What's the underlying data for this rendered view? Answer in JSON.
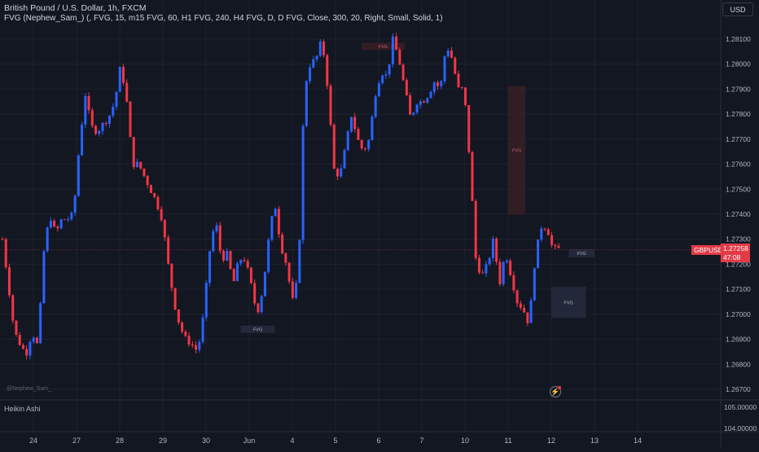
{
  "header": {
    "title": "British Pound / U.S. Dollar, 1h, FXCM",
    "indicator": "FVG (Nephew_Sam_) (, FVG, 15, m15 FVG, 60, H1 FVG, 240, H4 FVG, D, D FVG, Close, 300, 20, Right, Small, Solid, 1)"
  },
  "currency_button": "USD",
  "watermark": "@Nephew_Sam_",
  "subpane_label": "Heikin Ashi",
  "ticker_badge": "GBPUSD",
  "last_price": "1.27258",
  "countdown": "47:08",
  "colors": {
    "background": "#131722",
    "bull": "#2962ff",
    "bear": "#f23645",
    "fvg_bear": "#3a1f26",
    "fvg_bull": "#262b3d",
    "last_price": "#e03b47"
  },
  "chart_data": {
    "type": "candlestick",
    "style": "Heikin Ashi",
    "symbol": "GBPUSD",
    "interval": "1h",
    "y_ticks": [
      "1.28100",
      "1.28000",
      "1.27900",
      "1.27800",
      "1.27700",
      "1.27600",
      "1.27500",
      "1.27400",
      "1.27300",
      "1.27200",
      "1.27100",
      "1.27000",
      "1.26900",
      "1.26800",
      "1.26700"
    ],
    "y_range": [
      1.2664,
      1.2815
    ],
    "sub_y_ticks": [
      "105.00000",
      "104.00000"
    ],
    "x_ticks": [
      "24",
      "27",
      "28",
      "29",
      "30",
      "Jun",
      "4",
      "5",
      "6",
      "7",
      "10",
      "11",
      "12",
      "13",
      "14"
    ],
    "x_tick_index": [
      0,
      10,
      20,
      30,
      40,
      50,
      60,
      70,
      80,
      90,
      100,
      110,
      120,
      130,
      140
    ],
    "close_path": [
      1.273,
      1.2712,
      1.2693,
      1.2688,
      1.2684,
      1.2693,
      1.2687,
      1.2725,
      1.274,
      1.2732,
      1.2738,
      1.2738,
      1.274,
      1.2768,
      1.2788,
      1.2775,
      1.2773,
      1.2776,
      1.2779,
      1.2785,
      1.28,
      1.2785,
      1.276,
      1.276,
      1.2755,
      1.275,
      1.2745,
      1.2738,
      1.272,
      1.2705,
      1.2695,
      1.269,
      1.2688,
      1.2685,
      1.27,
      1.2725,
      1.2738,
      1.2722,
      1.2724,
      1.2712,
      1.2722,
      1.2722,
      1.2712,
      1.27,
      1.271,
      1.273,
      1.2745,
      1.2728,
      1.272,
      1.2705,
      1.2715,
      1.279,
      1.28,
      1.2802,
      1.281,
      1.279,
      1.2758,
      1.2755,
      1.2767,
      1.278,
      1.277,
      1.2765,
      1.277,
      1.2788,
      1.2797,
      1.2795,
      1.281,
      1.2802,
      1.279,
      1.2778,
      1.2785,
      1.2785,
      1.2788,
      1.2793,
      1.279,
      1.2808,
      1.2802,
      1.279,
      1.279,
      1.276,
      1.2722,
      1.2715,
      1.272,
      1.273,
      1.2712,
      1.2725,
      1.2715,
      1.2705,
      1.2702,
      1.2696,
      1.2722,
      1.2735,
      1.2735,
      1.2726,
      1.2726
    ],
    "annotations": [
      {
        "label": "FVG",
        "type": "bearish",
        "price_top": 1.28082,
        "price_bottom": 1.2806,
        "from_index": 76,
        "to_index": 86
      },
      {
        "label": "FVG",
        "type": "bearish",
        "price_top": 1.27912,
        "price_bottom": 1.27398,
        "from_index": 110,
        "to_index": 114
      },
      {
        "label": "FVG",
        "type": "bullish",
        "price_top": 1.2695,
        "price_bottom": 1.2693,
        "from_index": 48,
        "to_index": 56
      },
      {
        "label": "FVG",
        "type": "bullish",
        "price_top": 1.2726,
        "price_bottom": 1.27228,
        "from_index": 124,
        "to_index": 130
      },
      {
        "label": "FVG",
        "type": "bullish",
        "price_top": 1.2711,
        "price_bottom": 1.26985,
        "from_index": 120,
        "to_index": 128
      }
    ]
  }
}
